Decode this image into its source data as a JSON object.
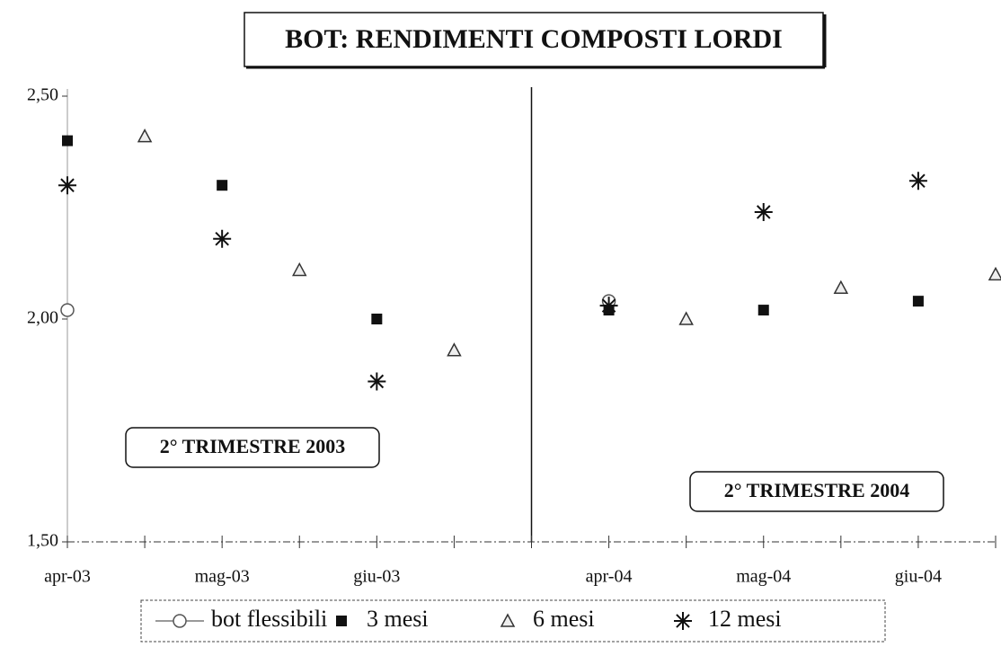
{
  "chart_data": {
    "type": "scatter",
    "title": "BOT: RENDIMENTI COMPOSTI LORDI",
    "categories": [
      "apr-03",
      null,
      "mag-03",
      null,
      "giu-03",
      null,
      null,
      "apr-04",
      null,
      "mag-04",
      null,
      "giu-04",
      null
    ],
    "series": [
      {
        "name": "bot flessibili",
        "color": "#555555",
        "marker": "circle",
        "values": [
          2.02,
          null,
          null,
          null,
          null,
          null,
          null,
          2.04,
          null,
          null,
          null,
          null,
          null
        ]
      },
      {
        "name": "3 mesi",
        "color": "#111111",
        "marker": "square",
        "values": [
          2.4,
          null,
          2.3,
          null,
          2.0,
          null,
          null,
          2.02,
          null,
          2.02,
          null,
          2.04,
          null
        ]
      },
      {
        "name": "6 mesi",
        "color": "#333333",
        "marker": "triangle",
        "values": [
          null,
          2.41,
          null,
          2.11,
          null,
          1.93,
          null,
          null,
          2.0,
          null,
          2.07,
          null,
          2.1
        ]
      },
      {
        "name": "12 mesi",
        "color": "#111111",
        "marker": "star",
        "values": [
          2.3,
          null,
          2.18,
          null,
          1.86,
          null,
          null,
          2.03,
          null,
          2.24,
          null,
          2.31,
          null
        ]
      }
    ],
    "annotations": [
      "2° TRIMESTRE 2003",
      "2° TRIMESTRE 2004"
    ],
    "ylim": [
      1.5,
      2.5
    ],
    "yticks": [
      {
        "value": 1.5,
        "label": "1,50"
      },
      {
        "value": 2.0,
        "label": "2,00"
      },
      {
        "value": 2.5,
        "label": "2,50"
      }
    ],
    "grid": false,
    "legend": "bottom"
  }
}
